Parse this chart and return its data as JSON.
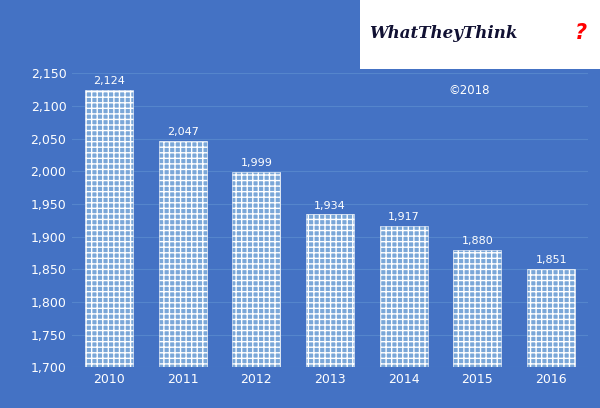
{
  "years": [
    "2010",
    "2011",
    "2012",
    "2013",
    "2014",
    "2015",
    "2016"
  ],
  "values": [
    2124,
    2047,
    1999,
    1934,
    1917,
    1880,
    1851
  ],
  "bar_color": "#7aa7d8",
  "background_color": "#4472C4",
  "text_color": "white",
  "grid_color": "#5585cc",
  "ylim": [
    1700,
    2150
  ],
  "yticks": [
    1700,
    1750,
    1800,
    1850,
    1900,
    1950,
    2000,
    2050,
    2100,
    2150
  ],
  "copyright_text": "©2018",
  "bar_width": 0.65,
  "value_fontsize": 8,
  "tick_fontsize": 9,
  "logo_fontsize": 13
}
